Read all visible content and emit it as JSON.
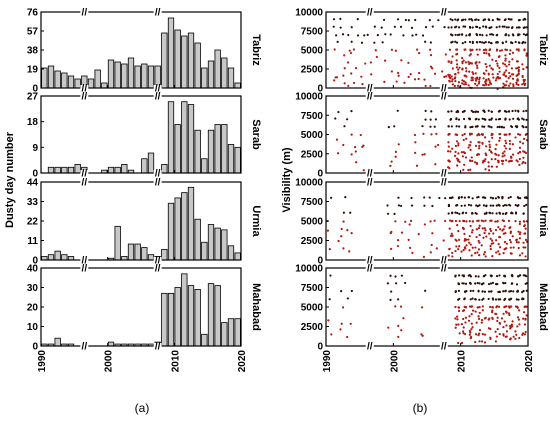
{
  "figure": {
    "caption_a": "(a)",
    "caption_b": "(b)"
  },
  "colors": {
    "bar_fill": "#c8c8c8",
    "bar_stroke": "#000000",
    "dot_dark": "#2b0d09",
    "dot_red": "#b3160c",
    "frame": "#000000"
  },
  "chart_data": [
    {
      "type": "bar",
      "panel": "a",
      "ylabel": "Dusty day number",
      "x_ticks": [
        "1990",
        "2000",
        "2010",
        "2020"
      ],
      "xlim": [
        1990,
        2020
      ],
      "axis_break": "//",
      "axis_break_years": [
        1996.5,
        2007.5
      ],
      "stations": [
        {
          "name": "Tabriz",
          "ylim": [
            0,
            76
          ],
          "y_ticks": [
            "76",
            "57",
            "38",
            "19",
            "0"
          ],
          "years": [
            1990,
            1991,
            1992,
            1993,
            1994,
            1995,
            1996,
            1997,
            1998,
            1999,
            2000,
            2001,
            2002,
            2003,
            2004,
            2005,
            2006,
            2007,
            2008,
            2009,
            2010,
            2011,
            2012,
            2013,
            2014,
            2015,
            2016,
            2017,
            2018,
            2019
          ],
          "values": [
            20,
            22,
            17,
            15,
            12,
            9,
            12,
            9,
            18,
            5,
            28,
            26,
            24,
            30,
            22,
            24,
            22,
            22,
            55,
            70,
            58,
            52,
            55,
            45,
            20,
            27,
            38,
            30,
            20,
            5
          ]
        },
        {
          "name": "Sarab",
          "ylim": [
            0,
            27
          ],
          "y_ticks": [
            "27",
            "18",
            "9",
            "0"
          ],
          "years": [
            1990,
            1991,
            1992,
            1993,
            1994,
            1995,
            1996,
            1997,
            1998,
            1999,
            2000,
            2001,
            2002,
            2003,
            2004,
            2005,
            2006,
            2007,
            2008,
            2009,
            2010,
            2011,
            2012,
            2013,
            2014,
            2015,
            2016,
            2017,
            2018,
            2019
          ],
          "values": [
            0,
            2,
            2,
            2,
            2,
            3,
            2,
            0,
            0,
            1,
            2,
            2,
            3,
            1,
            0,
            5,
            7,
            0,
            3,
            25,
            17,
            25,
            24,
            15,
            5,
            15,
            17,
            17,
            10,
            9
          ]
        },
        {
          "name": "Urmia",
          "ylim": [
            0,
            44
          ],
          "y_ticks": [
            "44",
            "33",
            "22",
            "11",
            "0"
          ],
          "years": [
            1990,
            1991,
            1992,
            1993,
            1994,
            1995,
            1996,
            1997,
            1998,
            1999,
            2000,
            2001,
            2002,
            2003,
            2004,
            2005,
            2006,
            2007,
            2008,
            2009,
            2010,
            2011,
            2012,
            2013,
            2014,
            2015,
            2016,
            2017,
            2018,
            2019
          ],
          "values": [
            2,
            3,
            5,
            3,
            2,
            0,
            0,
            0,
            0,
            0,
            1,
            19,
            2,
            9,
            9,
            7,
            3,
            2,
            6,
            32,
            35,
            38,
            41,
            23,
            10,
            20,
            18,
            17,
            8,
            4
          ]
        },
        {
          "name": "Mahabad",
          "ylim": [
            0,
            40
          ],
          "y_ticks": [
            "40",
            "30",
            "20",
            "10",
            "0"
          ],
          "years": [
            1990,
            1991,
            1992,
            1993,
            1994,
            1995,
            1996,
            1997,
            1998,
            1999,
            2000,
            2001,
            2002,
            2003,
            2004,
            2005,
            2006,
            2007,
            2008,
            2009,
            2010,
            2011,
            2012,
            2013,
            2014,
            2015,
            2016,
            2017,
            2018,
            2019
          ],
          "values": [
            1,
            1,
            4,
            1,
            1,
            0,
            0,
            0,
            0,
            0,
            2,
            1,
            1,
            1,
            1,
            1,
            1,
            2,
            27,
            27,
            30,
            37,
            31,
            29,
            6,
            32,
            31,
            12,
            14,
            14
          ]
        }
      ]
    },
    {
      "type": "scatter",
      "panel": "b",
      "ylabel": "Visibility (m)",
      "x_ticks": [
        "1990",
        "2000",
        "2010",
        "2020"
      ],
      "xlim": [
        1990,
        2020
      ],
      "axis_break": "//",
      "axis_break_years": [
        1996.5,
        2007.5
      ],
      "y_ticks": [
        "10000",
        "7500",
        "5000",
        "2500",
        "0"
      ],
      "ylim": [
        0,
        10000
      ],
      "note": "dense clouds of daily visibility observations; dark points at high visibility, red points at low visibility",
      "stations": [
        {
          "name": "Tabriz",
          "years": [
            1991,
            1992,
            1993,
            1994,
            1995,
            1996,
            1997,
            1998,
            1999,
            2000,
            2001,
            2002,
            2003,
            2004,
            2005,
            2006,
            2007,
            2008,
            2009,
            2010,
            2011,
            2012,
            2013,
            2014,
            2015,
            2016,
            2017,
            2018,
            2019
          ],
          "vis_levels": [
            9000,
            8000,
            7000,
            6000,
            5000,
            4000,
            3000,
            2000,
            1500,
            1000,
            500
          ]
        },
        {
          "name": "Sarab",
          "years": [
            1991,
            1992,
            1993,
            1994,
            1995,
            1999,
            2000,
            2003,
            2004,
            2005,
            2006,
            2008,
            2009,
            2010,
            2011,
            2012,
            2013,
            2014,
            2015,
            2016,
            2017,
            2018,
            2019
          ],
          "vis_levels": [
            8000,
            7000,
            6000,
            5000,
            4000,
            3000,
            2000,
            1000
          ]
        },
        {
          "name": "Urmia",
          "years": [
            1990,
            1991,
            1992,
            1993,
            1999,
            2000,
            2001,
            2002,
            2003,
            2004,
            2005,
            2006,
            2007,
            2008,
            2009,
            2010,
            2011,
            2012,
            2013,
            2014,
            2015,
            2016,
            2017,
            2018,
            2019
          ],
          "vis_levels": [
            8000,
            7000,
            6000,
            5000,
            4000,
            3000,
            2000,
            1000
          ]
        },
        {
          "name": "Mahabad",
          "years": [
            1990,
            1992,
            1993,
            1999,
            2000,
            2001,
            2004,
            2009,
            2010,
            2011,
            2012,
            2013,
            2014,
            2015,
            2016,
            2017,
            2018,
            2019
          ],
          "vis_levels": [
            9000,
            8000,
            7000,
            6000,
            5000,
            4000,
            3000,
            2000,
            1000
          ]
        }
      ]
    }
  ]
}
